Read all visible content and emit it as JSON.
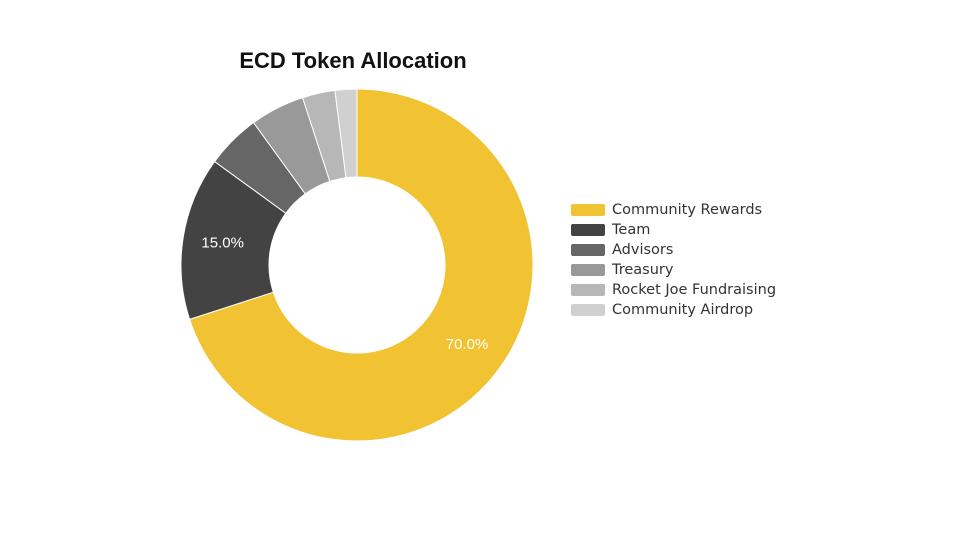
{
  "chart_data": {
    "type": "pie",
    "title": "ECD Token Allocation",
    "donut": true,
    "legend_position": "right",
    "slices": [
      {
        "label": "Community Rewards",
        "value": 70.0,
        "color": "#f1c232",
        "data_label": "70.0%"
      },
      {
        "label": "Team",
        "value": 15.0,
        "color": "#434343",
        "data_label": "15.0%"
      },
      {
        "label": "Advisors",
        "value": 5.0,
        "color": "#666666",
        "data_label": ""
      },
      {
        "label": "Treasury",
        "value": 5.0,
        "color": "#999999",
        "data_label": ""
      },
      {
        "label": "Rocket Joe Fundraising",
        "value": 3.0,
        "color": "#b7b7b7",
        "data_label": ""
      },
      {
        "label": "Community Airdrop",
        "value": 2.0,
        "color": "#d0d0d0",
        "data_label": ""
      }
    ]
  }
}
